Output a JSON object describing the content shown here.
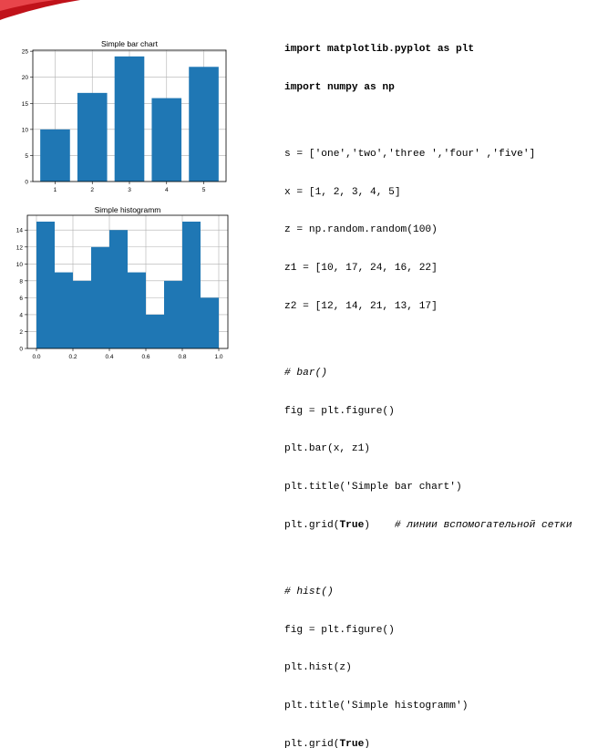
{
  "theme": {
    "bar_color": "#1f77b4",
    "accent": "#c0121a"
  },
  "chart_data": [
    {
      "type": "bar",
      "title": "Simple bar chart",
      "xlabel": "",
      "ylabel": "",
      "categories": [
        1,
        2,
        3,
        4,
        5
      ],
      "values": [
        10,
        17,
        24,
        16,
        22
      ],
      "x_ticks": [
        "1",
        "2",
        "3",
        "4",
        "5"
      ],
      "y_ticks": [
        "0",
        "5",
        "10",
        "15",
        "20",
        "25"
      ],
      "ylim": [
        0,
        25.2
      ],
      "grid": true
    },
    {
      "type": "bar",
      "title": "Simple histogramm",
      "xlabel": "",
      "ylabel": "",
      "bin_edges": [
        0.0,
        0.1,
        0.2,
        0.3,
        0.4,
        0.5,
        0.6,
        0.7,
        0.8,
        0.9,
        1.0
      ],
      "values": [
        15,
        9,
        8,
        12,
        14,
        9,
        4,
        8,
        15,
        6
      ],
      "x_ticks": [
        "0.0",
        "0.2",
        "0.4",
        "0.6",
        "0.8",
        "1.0"
      ],
      "y_ticks": [
        "0",
        "2",
        "4",
        "6",
        "8",
        "10",
        "12",
        "14"
      ],
      "xlim": [
        -0.05,
        1.05
      ],
      "ylim": [
        0,
        15.75
      ],
      "grid": true
    }
  ],
  "code": {
    "lines": [
      "import matplotlib.pyplot as plt",
      "import numpy as np",
      "",
      "s = ['one','two','three ','four' ,'five']",
      "x = [1, 2, 3, 4, 5]",
      "z = np.random.random(100)",
      "z1 = [10, 17, 24, 16, 22]",
      "z2 = [12, 14, 21, 13, 17]",
      "",
      "# bar()",
      "fig = plt.figure()",
      "plt.bar(x, z1)",
      "plt.title('Simple bar chart')",
      "plt.grid(",
      "",
      "# hist()",
      "fig = plt.figure()",
      "plt.hist(z)",
      "plt.title('Simple histogramm')",
      "plt.grid("
    ],
    "true_keyword": "True",
    "grid_close": ")",
    "grid_comment": "    # линии вспомогательной сетки"
  }
}
